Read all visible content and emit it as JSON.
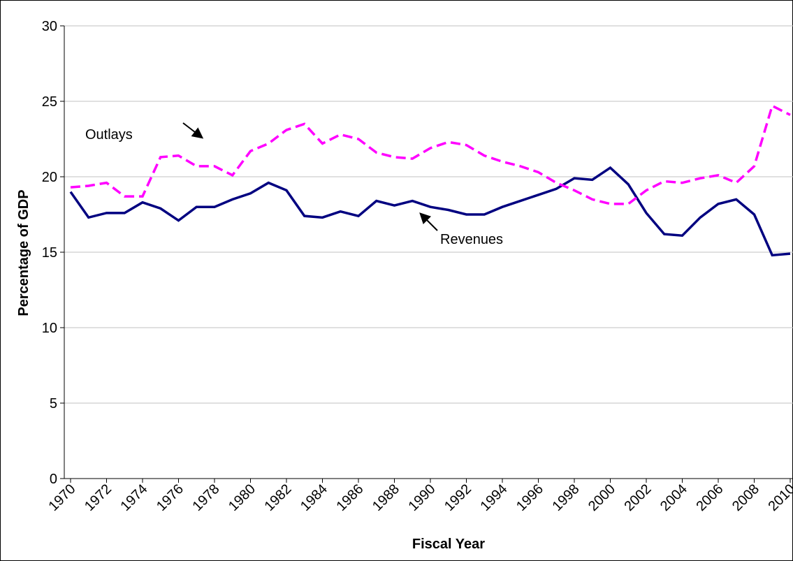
{
  "chart_data": {
    "type": "line",
    "x_label": "Fiscal Year",
    "y_label": "Percentage of GDP",
    "x": [
      1970,
      1971,
      1972,
      1973,
      1974,
      1975,
      1976,
      1977,
      1978,
      1979,
      1980,
      1981,
      1982,
      1983,
      1984,
      1985,
      1986,
      1987,
      1988,
      1989,
      1990,
      1991,
      1992,
      1993,
      1994,
      1995,
      1996,
      1997,
      1998,
      1999,
      2000,
      2001,
      2002,
      2003,
      2004,
      2005,
      2006,
      2007,
      2008,
      2009,
      2010
    ],
    "series": [
      {
        "name": "Revenues",
        "color": "#000080",
        "dashed": false,
        "values": [
          19.0,
          17.3,
          17.6,
          17.6,
          18.3,
          17.9,
          17.1,
          18.0,
          18.0,
          18.5,
          18.9,
          19.6,
          19.1,
          17.4,
          17.3,
          17.7,
          17.4,
          18.4,
          18.1,
          18.4,
          18.0,
          17.8,
          17.5,
          17.5,
          18.0,
          18.4,
          18.8,
          19.2,
          19.9,
          19.8,
          20.6,
          19.5,
          17.6,
          16.2,
          16.1,
          17.3,
          18.2,
          18.5,
          17.5,
          14.8,
          14.9
        ]
      },
      {
        "name": "Outlays",
        "color": "#ff00ff",
        "dashed": true,
        "values": [
          19.3,
          19.4,
          19.6,
          18.7,
          18.7,
          21.3,
          21.4,
          20.7,
          20.7,
          20.1,
          21.7,
          22.2,
          23.1,
          23.5,
          22.2,
          22.8,
          22.5,
          21.6,
          21.3,
          21.2,
          21.9,
          22.3,
          22.1,
          21.4,
          21.0,
          20.7,
          20.3,
          19.6,
          19.1,
          18.5,
          18.2,
          18.2,
          19.1,
          19.7,
          19.6,
          19.9,
          20.1,
          19.6,
          20.7,
          24.7,
          24.1
        ]
      }
    ],
    "xlim": [
      1970,
      2010
    ],
    "xticks": [
      1970,
      1972,
      1974,
      1976,
      1978,
      1980,
      1982,
      1984,
      1986,
      1988,
      1990,
      1992,
      1994,
      1996,
      1998,
      2000,
      2002,
      2004,
      2006,
      2008,
      2010
    ],
    "ylim": [
      0,
      30
    ],
    "yticks": [
      0,
      5,
      10,
      15,
      20,
      25,
      30
    ],
    "grid": true
  }
}
